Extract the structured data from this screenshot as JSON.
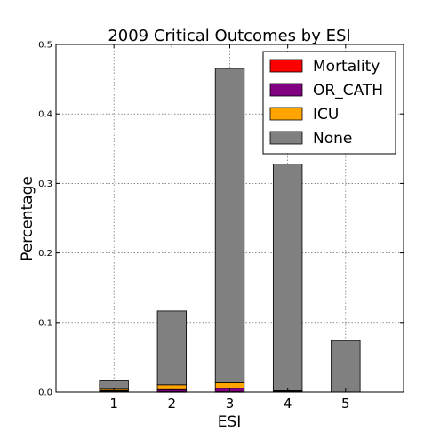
{
  "chart_data": {
    "type": "bar",
    "stacked": true,
    "title": "2009 Critical Outcomes by ESI",
    "xlabel": "ESI",
    "ylabel": "Percentage",
    "categories": [
      "1",
      "2",
      "3",
      "4",
      "5"
    ],
    "xlim": [
      0,
      6
    ],
    "ylim": [
      0,
      0.5
    ],
    "yticks": [
      "0.0",
      "0.1",
      "0.2",
      "0.3",
      "0.4",
      "0.5"
    ],
    "grid": true,
    "legend_position": "top-right",
    "series": [
      {
        "name": "Mortality",
        "color": "#ff0000",
        "values": [
          0.001,
          0.0005,
          0.0005,
          0.0,
          0.0
        ]
      },
      {
        "name": "OR_CATH",
        "color": "#800080",
        "values": [
          0.001,
          0.003,
          0.005,
          0.001,
          0.0
        ]
      },
      {
        "name": "ICU",
        "color": "#ffa500",
        "values": [
          0.002,
          0.007,
          0.008,
          0.001,
          0.0
        ]
      },
      {
        "name": "None",
        "color": "#808080",
        "values": [
          0.012,
          0.106,
          0.452,
          0.326,
          0.074
        ]
      }
    ]
  }
}
